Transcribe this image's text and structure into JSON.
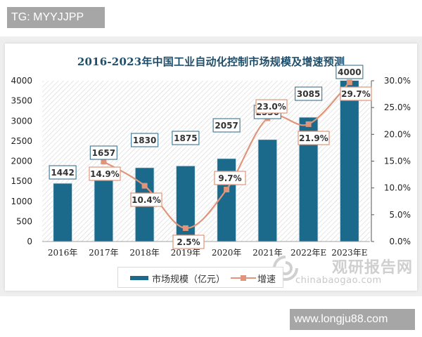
{
  "header_tag": "TG: MYYJJPP",
  "footer_tag": "www.longju88.com",
  "watermark": {
    "cn": "观研报告网",
    "en": "chinabaogao.com"
  },
  "colors": {
    "bar": "#1b6a8c",
    "line": "#e0957a",
    "bar_label_border": "#4a7f99",
    "line_label_border": "#e0957a",
    "title": "#1f4e6b"
  },
  "chart_data": {
    "type": "bar",
    "title": "2016-2023年中国工业自动化控制市场规模及增速预测",
    "categories": [
      "2016年",
      "2017年",
      "2018年",
      "2019年",
      "2020年",
      "2021年",
      "2022年E",
      "2023年E"
    ],
    "series": [
      {
        "name": "市场规模（亿元）",
        "type": "bar",
        "axis": "left",
        "values": [
          1442,
          1657,
          1830,
          1875,
          2057,
          2530,
          3085,
          4000
        ]
      },
      {
        "name": "增速",
        "type": "line",
        "axis": "right",
        "values": [
          null,
          14.9,
          10.4,
          2.5,
          9.7,
          23.0,
          21.9,
          29.7
        ],
        "labels": [
          "",
          "14.9%",
          "10.4%",
          "2.5%",
          "9.7%",
          "23.0%",
          "21.9%",
          "29.7%"
        ]
      }
    ],
    "left_axis": {
      "ticks": [
        "0",
        "500",
        "1000",
        "1500",
        "2000",
        "2500",
        "3000",
        "3500",
        "4000"
      ],
      "ylim": [
        0,
        4000
      ]
    },
    "right_axis": {
      "ticks": [
        "0.0%",
        "5.0%",
        "10.0%",
        "15.0%",
        "20.0%",
        "25.0%",
        "30.0%"
      ],
      "ylim": [
        0,
        30
      ]
    },
    "xlabel": "",
    "ylabel": "",
    "grid": false,
    "background": "diagonal hatch",
    "legend": {
      "position": "bottom",
      "items": [
        "市场规模（亿元）",
        "增速"
      ]
    }
  }
}
